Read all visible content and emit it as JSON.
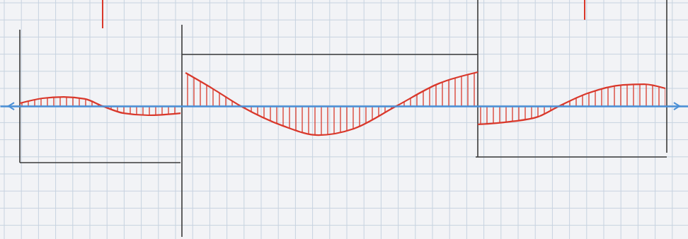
{
  "chart_data": {
    "type": "line",
    "xlim": [
      0,
      40.5
    ],
    "ylim": [
      -7.83,
      6.25
    ],
    "tick_labels": false,
    "grid": false,
    "series": [
      {
        "color": "#d9382b",
        "line_style": "solid",
        "x": [
          1.17,
          2.5,
          3.75,
          5,
          6.04,
          7.29,
          8.75,
          10.63
        ],
        "values": [
          0.17,
          0.46,
          0.54,
          0.42,
          0,
          -0.42,
          -0.54,
          -0.42
        ]
      },
      {
        "color": "#d9382b",
        "line_style": "solid",
        "x": [
          10.92,
          12.5,
          14.17,
          16.67,
          18.75,
          20.83,
          23.33,
          25.83,
          28.13
        ],
        "values": [
          1.96,
          1.04,
          0,
          -1.17,
          -1.71,
          -1.33,
          0,
          1.33,
          2
        ]
      },
      {
        "color": "#d9382b",
        "line_style": "solid",
        "x": [
          28.13,
          30,
          31.67,
          32.92,
          34.58,
          36.67,
          37.92,
          39.17
        ],
        "values": [
          -1.08,
          -0.92,
          -0.63,
          0,
          0.75,
          1.25,
          1.29,
          1.04
        ]
      }
    ]
  }
}
